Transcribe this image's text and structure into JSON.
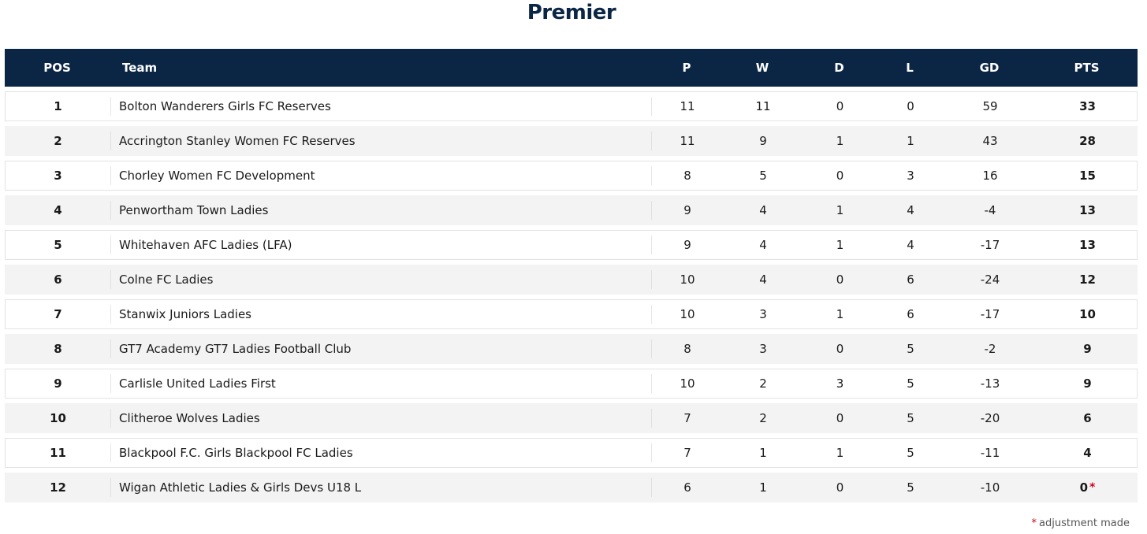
{
  "title": "Premier",
  "headers": {
    "pos": "POS",
    "team": "Team",
    "p": "P",
    "w": "W",
    "d": "D",
    "l": "L",
    "gd": "GD",
    "pts": "PTS"
  },
  "rows": [
    {
      "pos": "1",
      "team": "Bolton Wanderers Girls FC Reserves",
      "p": "11",
      "w": "11",
      "d": "0",
      "l": "0",
      "gd": "59",
      "pts": "33",
      "adjusted": false
    },
    {
      "pos": "2",
      "team": "Accrington Stanley Women FC Reserves",
      "p": "11",
      "w": "9",
      "d": "1",
      "l": "1",
      "gd": "43",
      "pts": "28",
      "adjusted": false
    },
    {
      "pos": "3",
      "team": "Chorley Women FC Development",
      "p": "8",
      "w": "5",
      "d": "0",
      "l": "3",
      "gd": "16",
      "pts": "15",
      "adjusted": false
    },
    {
      "pos": "4",
      "team": "Penwortham Town Ladies",
      "p": "9",
      "w": "4",
      "d": "1",
      "l": "4",
      "gd": "-4",
      "pts": "13",
      "adjusted": false
    },
    {
      "pos": "5",
      "team": "Whitehaven AFC Ladies (LFA)",
      "p": "9",
      "w": "4",
      "d": "1",
      "l": "4",
      "gd": "-17",
      "pts": "13",
      "adjusted": false
    },
    {
      "pos": "6",
      "team": "Colne FC Ladies",
      "p": "10",
      "w": "4",
      "d": "0",
      "l": "6",
      "gd": "-24",
      "pts": "12",
      "adjusted": false
    },
    {
      "pos": "7",
      "team": "Stanwix Juniors Ladies",
      "p": "10",
      "w": "3",
      "d": "1",
      "l": "6",
      "gd": "-17",
      "pts": "10",
      "adjusted": false
    },
    {
      "pos": "8",
      "team": "GT7 Academy GT7 Ladies Football Club",
      "p": "8",
      "w": "3",
      "d": "0",
      "l": "5",
      "gd": "-2",
      "pts": "9",
      "adjusted": false
    },
    {
      "pos": "9",
      "team": "Carlisle United Ladies First",
      "p": "10",
      "w": "2",
      "d": "3",
      "l": "5",
      "gd": "-13",
      "pts": "9",
      "adjusted": false
    },
    {
      "pos": "10",
      "team": "Clitheroe Wolves Ladies",
      "p": "7",
      "w": "2",
      "d": "0",
      "l": "5",
      "gd": "-20",
      "pts": "6",
      "adjusted": false
    },
    {
      "pos": "11",
      "team": "Blackpool F.C. Girls Blackpool FC Ladies",
      "p": "7",
      "w": "1",
      "d": "1",
      "l": "5",
      "gd": "-11",
      "pts": "4",
      "adjusted": false
    },
    {
      "pos": "12",
      "team": "Wigan Athletic Ladies & Girls Devs U18 L",
      "p": "6",
      "w": "1",
      "d": "0",
      "l": "5",
      "gd": "-10",
      "pts": "0",
      "adjusted": true
    }
  ],
  "adjustment_marker": "*",
  "footnote": "adjustment made",
  "colors": {
    "header_bg": "#0b2545",
    "title": "#0b2545",
    "alt_row": "#f3f3f3",
    "marker": "#d0021b"
  }
}
